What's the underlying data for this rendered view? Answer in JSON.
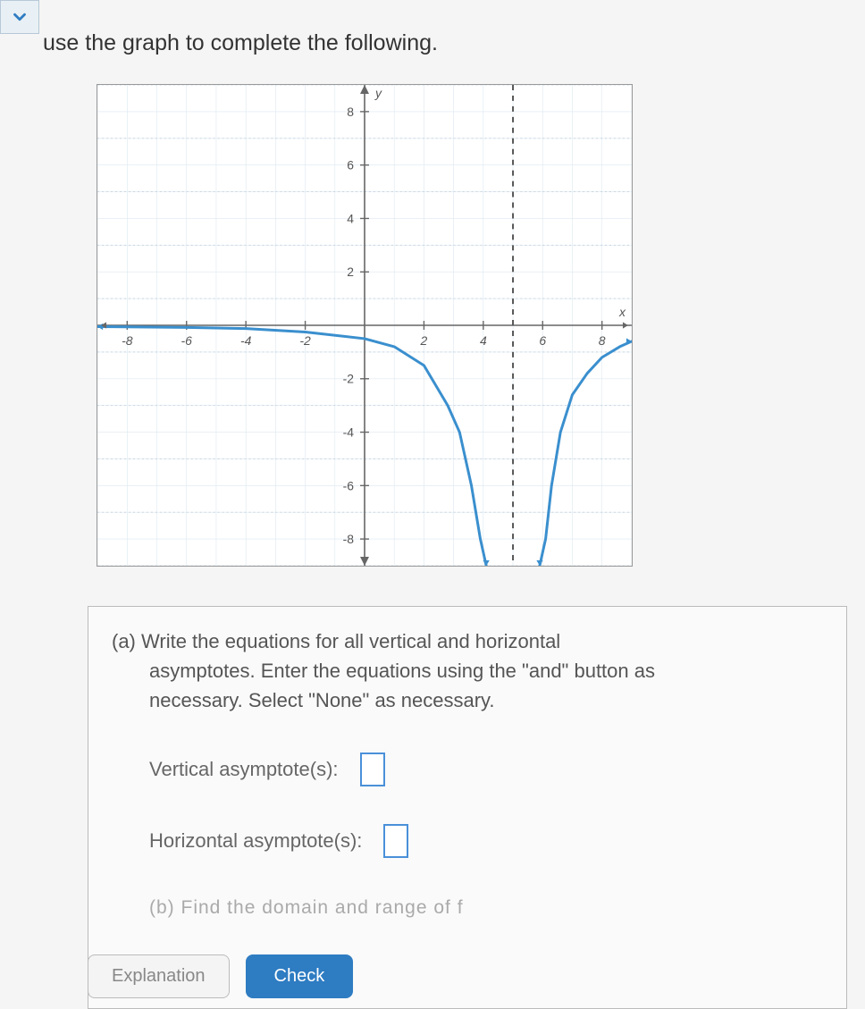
{
  "header": {
    "chevron_color": "#2e7cc2",
    "prompt": "use the graph to complete the following."
  },
  "graph": {
    "type": "line",
    "background_color": "#ffffff",
    "grid_color": "#dde8f0",
    "axis_color": "#666666",
    "curve_color": "#3a8fce",
    "asymptote_color": "#555555",
    "xlim": [
      -9,
      9
    ],
    "ylim": [
      -9,
      9
    ],
    "xtick_step": 2,
    "ytick_step": 2,
    "xtick_labels": [
      "-8",
      "-6",
      "-4",
      "-2",
      "2",
      "4",
      "6",
      "8"
    ],
    "ytick_labels": [
      "8",
      "6",
      "4",
      "2",
      "-2",
      "-4",
      "-6",
      "-8"
    ],
    "axis_labels": {
      "x": "x",
      "y": "y"
    },
    "tick_fontsize": 14,
    "label_fontsize": 14,
    "line_width": 3,
    "vertical_asymptote_x": 5,
    "horizontal_asymptote_y": 0,
    "series_left": {
      "description": "left branch approaching y=0 from below, diving to -inf near x=5-",
      "points": [
        [
          -9,
          -0.05
        ],
        [
          -6,
          -0.08
        ],
        [
          -4,
          -0.12
        ],
        [
          -2,
          -0.25
        ],
        [
          0,
          -0.5
        ],
        [
          1,
          -0.8
        ],
        [
          2,
          -1.5
        ],
        [
          2.8,
          -3
        ],
        [
          3.2,
          -4
        ],
        [
          3.6,
          -6
        ],
        [
          3.9,
          -8
        ],
        [
          4.1,
          -9
        ]
      ]
    },
    "series_right": {
      "description": "right branch rising from -inf near x=5+, approaching y=0 from below",
      "points": [
        [
          5.9,
          -9
        ],
        [
          6.1,
          -8
        ],
        [
          6.3,
          -6
        ],
        [
          6.6,
          -4
        ],
        [
          7,
          -2.6
        ],
        [
          7.5,
          -1.8
        ],
        [
          8,
          -1.2
        ],
        [
          8.6,
          -0.8
        ],
        [
          9,
          -0.6
        ]
      ]
    }
  },
  "question": {
    "prefix": "(a)",
    "line1": "Write the equations for all vertical and horizontal",
    "line2": "asymptotes. Enter the equations using the \"and\" button as",
    "line3": "necessary. Select \"None\" as necessary.",
    "vert_label": "Vertical asymptote(s):",
    "horiz_label": "Horizontal asymptote(s):",
    "partb_text": "(b) Find the domain and range of f"
  },
  "buttons": {
    "explanation": "Explanation",
    "check": "Check"
  },
  "colors": {
    "answer_box_border": "#4a90d9",
    "button_primary_bg": "#2e7cc2",
    "text_main": "#555555"
  }
}
